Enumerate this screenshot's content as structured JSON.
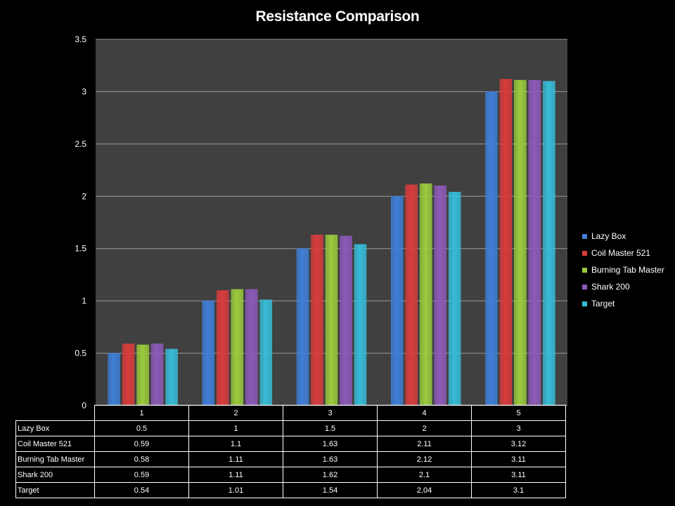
{
  "chart_data": {
    "type": "bar",
    "title": "Resistance Comparison",
    "categories": [
      "1",
      "2",
      "3",
      "4",
      "5"
    ],
    "ylim": [
      0,
      3.5
    ],
    "yticks": [
      "0",
      "0.5",
      "1",
      "1.5",
      "2",
      "2.5",
      "3",
      "3.5"
    ],
    "grid": true,
    "legend_position": "right",
    "series": [
      {
        "name": "Lazy Box",
        "color": "#3f7fd8",
        "values": [
          0.5,
          1,
          1.5,
          2,
          3
        ],
        "labels": [
          "0.5",
          "1",
          "1.5",
          "2",
          "3"
        ]
      },
      {
        "name": "Coil Master  521",
        "color": "#d93c3c",
        "values": [
          0.59,
          1.1,
          1.63,
          2.11,
          3.12
        ],
        "labels": [
          "0.59",
          "1.1",
          "1.63",
          "2.11",
          "3.12"
        ]
      },
      {
        "name": "Burning Tab  Master",
        "color": "#9acb3c",
        "values": [
          0.58,
          1.11,
          1.63,
          2.12,
          3.11
        ],
        "labels": [
          "0.58",
          "1.11",
          "1.63",
          "2.12",
          "3.11"
        ]
      },
      {
        "name": "Shark 200",
        "color": "#8d5ab8",
        "values": [
          0.59,
          1.11,
          1.62,
          2.1,
          3.11
        ],
        "labels": [
          "0.59",
          "1.11",
          "1.62",
          "2.1",
          "3.11"
        ]
      },
      {
        "name": "Target",
        "color": "#37bcd8",
        "values": [
          0.54,
          1.01,
          1.54,
          2.04,
          3.1
        ],
        "labels": [
          "0.54",
          "1.01",
          "1.54",
          "2.04",
          "3.1"
        ]
      }
    ]
  }
}
